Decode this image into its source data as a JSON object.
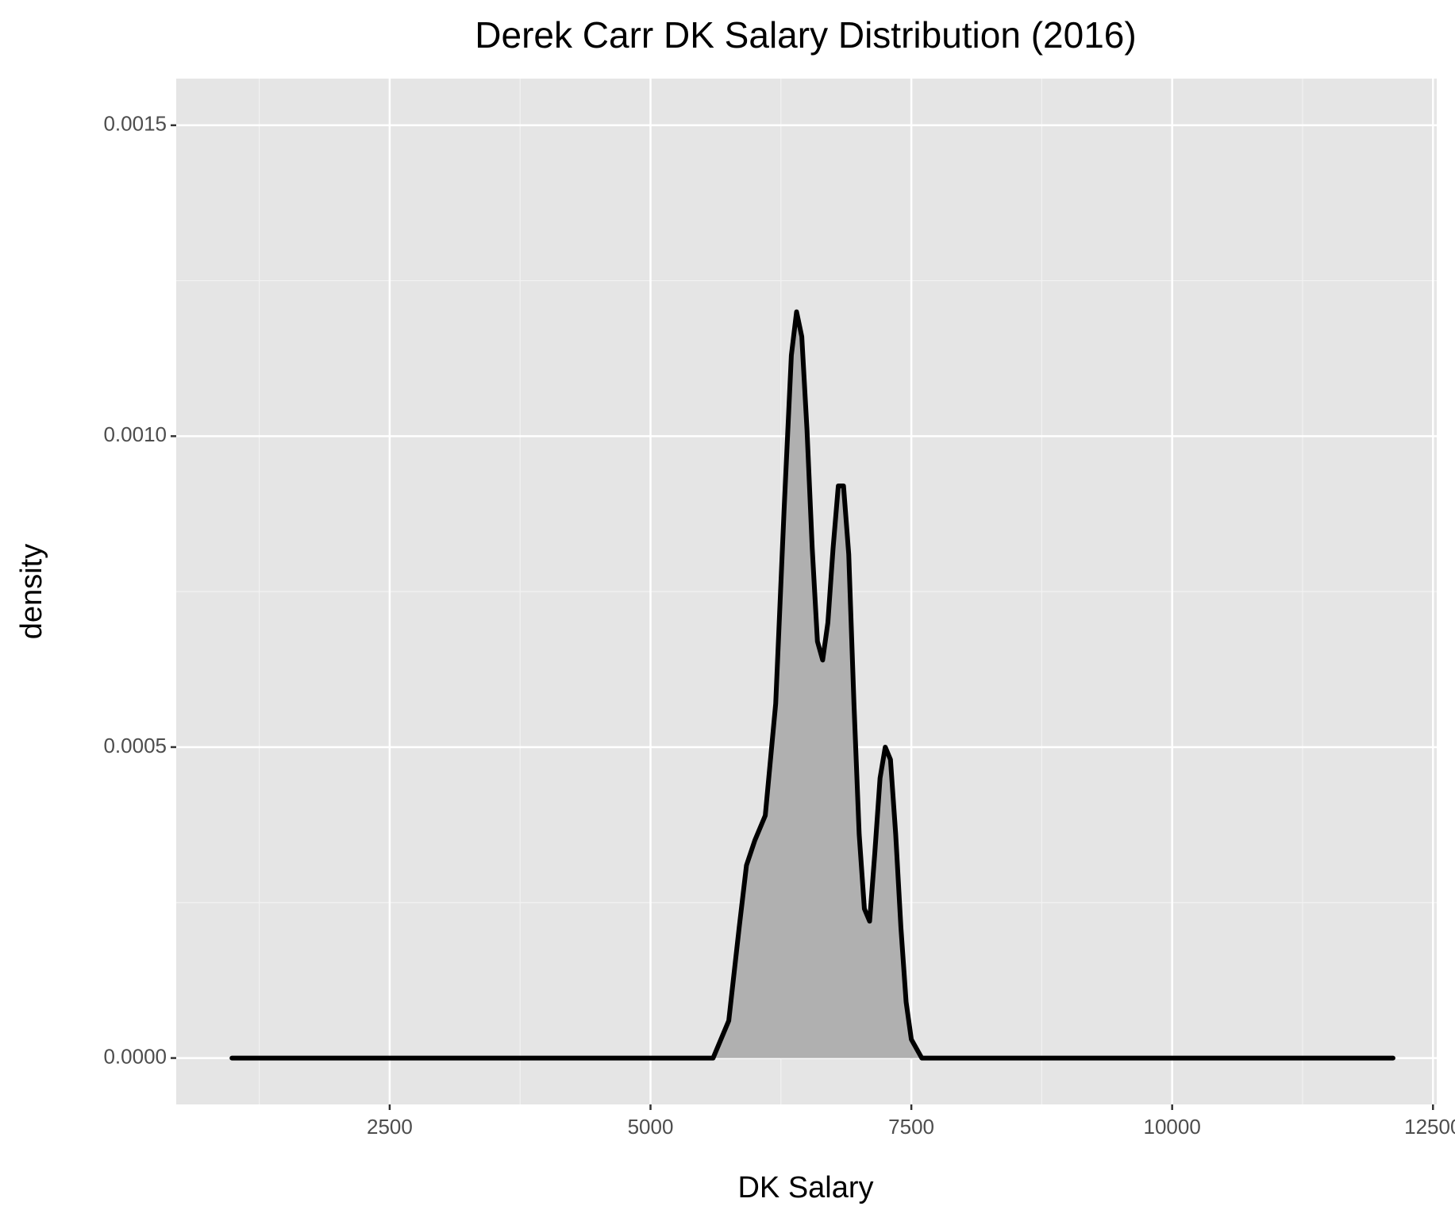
{
  "chart_data": {
    "type": "density",
    "title": "Derek Carr DK Salary Distribution (2016)",
    "x_label": "DK Salary",
    "y_label": "density",
    "x": [
      988,
      5600,
      5750,
      5850,
      5920,
      6000,
      6100,
      6200,
      6280,
      6350,
      6400,
      6450,
      6500,
      6550,
      6600,
      6650,
      6700,
      6750,
      6800,
      6850,
      6900,
      6950,
      7000,
      7050,
      7100,
      7150,
      7200,
      7250,
      7300,
      7350,
      7400,
      7450,
      7500,
      7600,
      12117
    ],
    "values": [
      0,
      0,
      6e-05,
      0.00021,
      0.00031,
      0.00035,
      0.00039,
      0.00057,
      0.00088,
      0.00113,
      0.0012,
      0.00116,
      0.00101,
      0.00082,
      0.00067,
      0.00064,
      0.0007,
      0.00082,
      0.00092,
      0.00092,
      0.00081,
      0.00057,
      0.00036,
      0.00024,
      0.00022,
      0.00033,
      0.00045,
      0.0005,
      0.00048,
      0.00036,
      0.00021,
      9e-05,
      3e-05,
      0,
      0
    ],
    "fill": "#b0b0b0",
    "color": "#000000",
    "xlim": [
      454,
      12536
    ],
    "xticks": [
      2500,
      5000,
      7500,
      10000,
      12500
    ],
    "ylim": [
      -7.46e-05,
      0.001575
    ],
    "yticks": [
      {
        "value": 0,
        "label": "0.0000"
      },
      {
        "value": 0.0005,
        "label": "0.0005"
      },
      {
        "value": 0.001,
        "label": "0.0010"
      },
      {
        "value": 0.0015,
        "label": "0.0015"
      }
    ],
    "grid": true
  }
}
